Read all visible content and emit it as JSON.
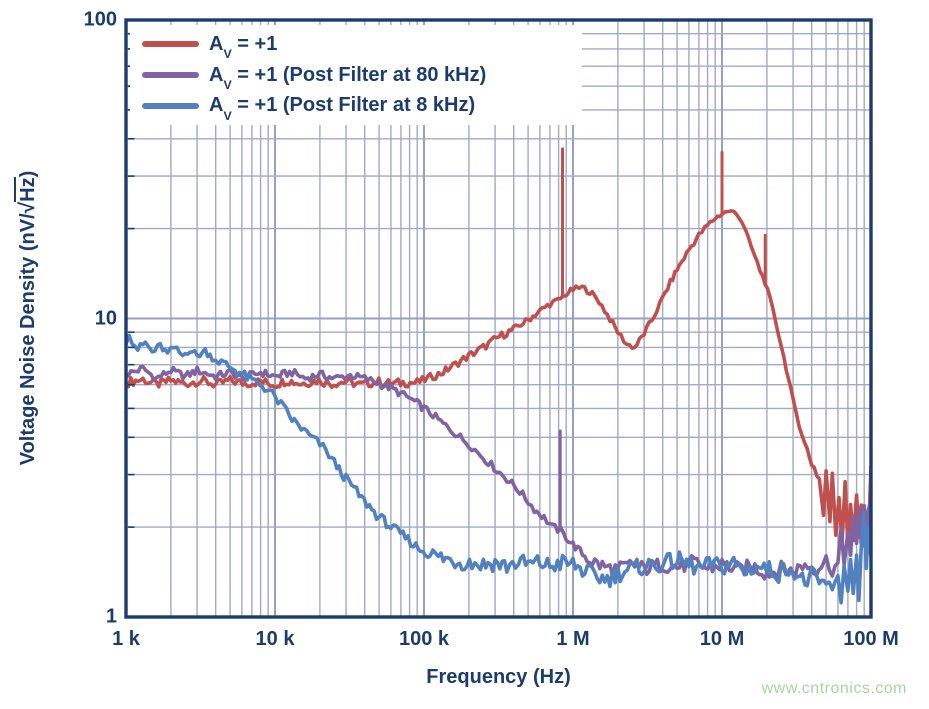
{
  "watermark": "www.cntronics.com",
  "chart_data": {
    "type": "line",
    "title": "",
    "xlabel": "Frequency (Hz)",
    "ylabel": "Voltage Noise Density (nV/√Hz)",
    "ylabel_prefix": "Voltage Noise Density (nV/",
    "ylabel_sqrt": "√",
    "ylabel_sqrt_arg": "Hz",
    "ylabel_suffix": ")",
    "x_scale": "log",
    "y_scale": "log",
    "xlim": [
      1000,
      100000000
    ],
    "ylim": [
      1,
      100
    ],
    "grid": {
      "minor": true,
      "color": "#A2A8C8",
      "major_color": "#98A0C2"
    },
    "axis_color": "#1B3C6D",
    "x_ticks": [
      {
        "value": 1000,
        "label": "1 k"
      },
      {
        "value": 10000,
        "label": "10 k"
      },
      {
        "value": 100000,
        "label": "100 k"
      },
      {
        "value": 1000000,
        "label": "1 M"
      },
      {
        "value": 10000000,
        "label": "10 M"
      },
      {
        "value": 100000000,
        "label": "100 M"
      }
    ],
    "y_ticks": [
      {
        "value": 100,
        "label": "100"
      },
      {
        "value": 10,
        "label": "10"
      },
      {
        "value": 1,
        "label": "1"
      }
    ],
    "legend": {
      "position": "top-left",
      "items": [
        {
          "prefix": "A",
          "sub": "V",
          "rest": " = +1"
        },
        {
          "prefix": "A",
          "sub": "V",
          "rest": " = +1 (Post Filter at 80 kHz)"
        },
        {
          "prefix": "A",
          "sub": "V",
          "rest": " = +1 (Post Filter at 8 kHz)"
        }
      ]
    },
    "series": [
      {
        "name": "Av = +1",
        "color": "#C0504D",
        "noise": 0.015,
        "points": [
          [
            1000,
            6.1,
            0.015
          ],
          [
            1300,
            6.25
          ],
          [
            1600,
            6.0
          ],
          [
            2000,
            6.2
          ],
          [
            2500,
            6.05
          ],
          [
            3200,
            6.2
          ],
          [
            4000,
            6.0
          ],
          [
            5000,
            6.2
          ],
          [
            6300,
            6.05
          ],
          [
            8000,
            6.15
          ],
          [
            10000,
            6.0
          ],
          [
            12000,
            6.2
          ],
          [
            15000,
            6.05
          ],
          [
            19000,
            6.2
          ],
          [
            24000,
            6.05
          ],
          [
            30000,
            6.15
          ],
          [
            38000,
            6.0
          ],
          [
            48000,
            6.15
          ],
          [
            60000,
            6.05
          ],
          [
            75000,
            6.1
          ],
          [
            90000,
            6.1
          ],
          [
            110000,
            6.35,
            0.013
          ],
          [
            130000,
            6.55
          ],
          [
            150000,
            6.85
          ],
          [
            200000,
            7.5
          ],
          [
            250000,
            8.0
          ],
          [
            320000,
            8.7
          ],
          [
            400000,
            9.2
          ],
          [
            500000,
            9.9,
            0.01
          ],
          [
            600000,
            10.6
          ],
          [
            700000,
            11.2
          ],
          [
            800000,
            11.5
          ],
          [
            850000,
            11.8
          ],
          [
            900000,
            12.1
          ],
          [
            1000000,
            12.5
          ],
          [
            1150000,
            12.7
          ],
          [
            1300000,
            12.3
          ],
          [
            1500000,
            11.4
          ],
          [
            1700000,
            10.3
          ],
          [
            2000000,
            9.0
          ],
          [
            2300000,
            8.2
          ],
          [
            2600000,
            8.0,
            0.01
          ],
          [
            3000000,
            8.9
          ],
          [
            3500000,
            10.2
          ],
          [
            4000000,
            11.7
          ],
          [
            4500000,
            13.2
          ],
          [
            5000000,
            14.6
          ],
          [
            6000000,
            17.0
          ],
          [
            7000000,
            19.0
          ],
          [
            8000000,
            20.5
          ],
          [
            9000000,
            21.7
          ],
          [
            10000000,
            22.4,
            0.008
          ],
          [
            11000000,
            22.9
          ],
          [
            12000000,
            22.7
          ],
          [
            13000000,
            22.0
          ],
          [
            14000000,
            20.5
          ],
          [
            15000000,
            18.5
          ],
          [
            16500000,
            16.3
          ],
          [
            18000000,
            14.5
          ],
          [
            19500000,
            13.2
          ],
          [
            21000000,
            11.6
          ],
          [
            23000000,
            9.7
          ],
          [
            25000000,
            8.1
          ],
          [
            27000000,
            6.8
          ],
          [
            30000000,
            5.3
          ],
          [
            33000000,
            4.4
          ],
          [
            36000000,
            3.8
          ],
          [
            40000000,
            3.3,
            0.02
          ],
          [
            45000000,
            2.9
          ],
          [
            48000000,
            2.2
          ],
          [
            50000000,
            3.0
          ],
          [
            53000000,
            2.1
          ],
          [
            55000000,
            3.1
          ],
          [
            58000000,
            1.9
          ],
          [
            61000000,
            2.6
          ],
          [
            64000000,
            1.8
          ],
          [
            67000000,
            2.9
          ],
          [
            70000000,
            1.75
          ],
          [
            73000000,
            2.3
          ],
          [
            76000000,
            1.8
          ],
          [
            80000000,
            2.6
          ],
          [
            83000000,
            1.9
          ],
          [
            86000000,
            2.4
          ],
          [
            90000000,
            1.7
          ],
          [
            93000000,
            2.1
          ],
          [
            96000000,
            1.75
          ],
          [
            100000000,
            3.2
          ]
        ],
        "spikes": [
          {
            "f": 850000,
            "from": 11.8,
            "to": 37
          },
          {
            "f": 10000000,
            "from": 22.4,
            "to": 36
          },
          {
            "f": 19500000,
            "from": 13.2,
            "to": 19
          }
        ]
      },
      {
        "name": "Av = +1 (Post Filter at 80 kHz)",
        "color": "#8064A2",
        "noise": 0.013,
        "points": [
          [
            1000,
            6.5,
            0.013
          ],
          [
            1300,
            6.8
          ],
          [
            1600,
            6.3
          ],
          [
            2000,
            6.7
          ],
          [
            2500,
            6.4
          ],
          [
            3000,
            6.7
          ],
          [
            4000,
            6.4
          ],
          [
            5000,
            6.6
          ],
          [
            6000,
            6.3
          ],
          [
            8000,
            6.6
          ],
          [
            10000,
            6.4
          ],
          [
            13000,
            6.6
          ],
          [
            16000,
            6.3
          ],
          [
            20000,
            6.5
          ],
          [
            25000,
            6.3
          ],
          [
            32000,
            6.45
          ],
          [
            40000,
            6.3
          ],
          [
            46000,
            6.15
          ],
          [
            52000,
            6.0
          ],
          [
            60000,
            5.85
          ],
          [
            70000,
            5.6
          ],
          [
            80000,
            5.4
          ],
          [
            90000,
            5.2
          ],
          [
            100000,
            5.0
          ],
          [
            115000,
            4.75
          ],
          [
            130000,
            4.5
          ],
          [
            150000,
            4.25
          ],
          [
            175000,
            4.0
          ],
          [
            200000,
            3.8
          ],
          [
            230000,
            3.55
          ],
          [
            270000,
            3.3
          ],
          [
            310000,
            3.1
          ],
          [
            360000,
            2.9
          ],
          [
            420000,
            2.7
          ],
          [
            480000,
            2.5
          ],
          [
            550000,
            2.3
          ],
          [
            640000,
            2.15
          ],
          [
            730000,
            2.0
          ],
          [
            820000,
            1.95
          ],
          [
            900000,
            1.85
          ],
          [
            1000000,
            1.75
          ],
          [
            1200000,
            1.6
          ],
          [
            1400000,
            1.52,
            0.026
          ],
          [
            1700000,
            1.46
          ],
          [
            2000000,
            1.44
          ],
          [
            2500000,
            1.5
          ],
          [
            3000000,
            1.45
          ],
          [
            4000000,
            1.5
          ],
          [
            5000000,
            1.47
          ],
          [
            6500000,
            1.52
          ],
          [
            8000000,
            1.45
          ],
          [
            10000000,
            1.5
          ],
          [
            13000000,
            1.44
          ],
          [
            16000000,
            1.48
          ],
          [
            20000000,
            1.4
          ],
          [
            25000000,
            1.45
          ],
          [
            30000000,
            1.42
          ],
          [
            36000000,
            1.5
          ],
          [
            43000000,
            1.45
          ],
          [
            50000000,
            1.55
          ],
          [
            55000000,
            1.45
          ],
          [
            60000000,
            1.5,
            0.02
          ],
          [
            63000000,
            1.9
          ],
          [
            66000000,
            1.5
          ],
          [
            70000000,
            2.0
          ],
          [
            73000000,
            1.6
          ],
          [
            76000000,
            2.1
          ],
          [
            80000000,
            1.7
          ],
          [
            83000000,
            2.3
          ],
          [
            86000000,
            1.8
          ],
          [
            90000000,
            2.4
          ],
          [
            93000000,
            1.9
          ],
          [
            96000000,
            2.2
          ],
          [
            100000000,
            2.5
          ]
        ],
        "spikes": [
          {
            "f": 820000,
            "from": 1.95,
            "to": 4.2
          }
        ]
      },
      {
        "name": "Av = +1 (Post Filter at 8 kHz)",
        "color": "#5182BF",
        "noise": 0.012,
        "points": [
          [
            1000,
            8.2,
            0.012
          ],
          [
            1050,
            9.0
          ],
          [
            1100,
            8.4
          ],
          [
            1200,
            7.9
          ],
          [
            1350,
            8.3
          ],
          [
            1500,
            7.7
          ],
          [
            1700,
            8.1
          ],
          [
            1900,
            7.6
          ],
          [
            2100,
            8.0
          ],
          [
            2400,
            7.5
          ],
          [
            2700,
            7.9
          ],
          [
            3000,
            7.5
          ],
          [
            3400,
            7.8
          ],
          [
            3800,
            7.4
          ],
          [
            4200,
            7.2,
            0.016
          ],
          [
            4700,
            7.0
          ],
          [
            5200,
            6.8
          ],
          [
            5800,
            6.6
          ],
          [
            6500,
            6.35
          ],
          [
            7300,
            6.15
          ],
          [
            8200,
            5.95
          ],
          [
            9200,
            5.7
          ],
          [
            10000,
            5.45
          ],
          [
            11500,
            5.0
          ],
          [
            13000,
            4.6
          ],
          [
            15000,
            4.3
          ],
          [
            17000,
            4.05
          ],
          [
            20000,
            3.8
          ],
          [
            23000,
            3.5
          ],
          [
            26000,
            3.2
          ],
          [
            30000,
            2.9
          ],
          [
            34000,
            2.7
          ],
          [
            38000,
            2.5
          ],
          [
            43000,
            2.35
          ],
          [
            48000,
            2.2
          ],
          [
            54000,
            2.1
          ],
          [
            60000,
            2.0
          ],
          [
            67000,
            1.93
          ],
          [
            75000,
            1.85
          ],
          [
            85000,
            1.75
          ],
          [
            95000,
            1.68
          ],
          [
            110000,
            1.62
          ],
          [
            130000,
            1.58,
            0.03
          ],
          [
            150000,
            1.55
          ],
          [
            180000,
            1.53
          ],
          [
            210000,
            1.52
          ],
          [
            250000,
            1.5
          ],
          [
            300000,
            1.52
          ],
          [
            360000,
            1.48
          ],
          [
            430000,
            1.53
          ],
          [
            500000,
            1.5
          ],
          [
            600000,
            1.52
          ],
          [
            700000,
            1.48
          ],
          [
            850000,
            1.52
          ],
          [
            1000000,
            1.5
          ],
          [
            1200000,
            1.42
          ],
          [
            1400000,
            1.37
          ],
          [
            1700000,
            1.34
          ],
          [
            2000000,
            1.4
          ],
          [
            2400000,
            1.44
          ],
          [
            3000000,
            1.48
          ],
          [
            3600000,
            1.5
          ],
          [
            4300000,
            1.52
          ],
          [
            5000000,
            1.55
          ],
          [
            6000000,
            1.5
          ],
          [
            7000000,
            1.45
          ],
          [
            8500000,
            1.5
          ],
          [
            10000000,
            1.47
          ],
          [
            12000000,
            1.52
          ],
          [
            14000000,
            1.42
          ],
          [
            17000000,
            1.48
          ],
          [
            20000000,
            1.45
          ],
          [
            24000000,
            1.4
          ],
          [
            28000000,
            1.48
          ],
          [
            32000000,
            1.38
          ],
          [
            36000000,
            1.3
          ],
          [
            40000000,
            1.38
          ],
          [
            45000000,
            1.28
          ],
          [
            50000000,
            1.32
          ],
          [
            55000000,
            1.18
          ],
          [
            60000000,
            1.4,
            0.022
          ],
          [
            63000000,
            1.15
          ],
          [
            66000000,
            1.5
          ],
          [
            70000000,
            1.2
          ],
          [
            73000000,
            1.55
          ],
          [
            76000000,
            1.25
          ],
          [
            80000000,
            1.65
          ],
          [
            83000000,
            1.1
          ],
          [
            86000000,
            1.7
          ],
          [
            90000000,
            2.25
          ],
          [
            93000000,
            1.4
          ],
          [
            96000000,
            1.9
          ],
          [
            100000000,
            1.6
          ]
        ],
        "spikes": []
      }
    ]
  }
}
